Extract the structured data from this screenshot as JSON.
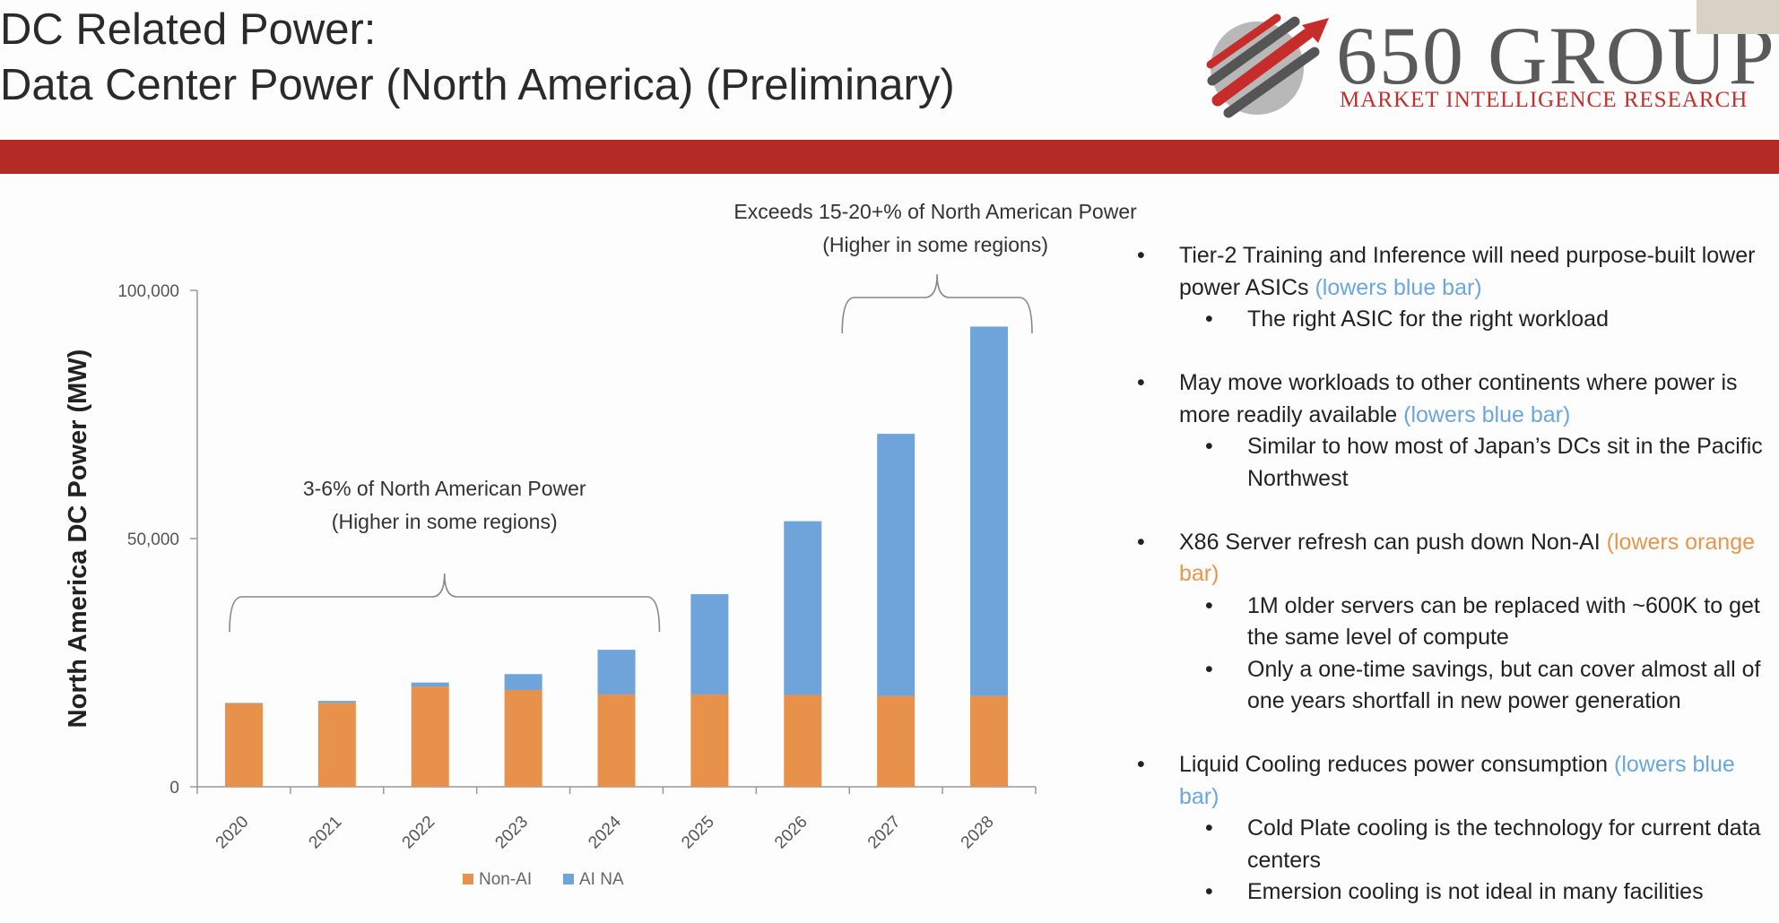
{
  "title": {
    "line1": "DC Related Power:",
    "line2": "Data Center Power (North America) (Preliminary)"
  },
  "logo": {
    "main": "650 GROUP",
    "sub": "MARKET INTELLIGENCE RESEARCH"
  },
  "colors": {
    "band": "#b42a24",
    "non_ai": "#e8914a",
    "ai_na": "#6fa4da",
    "blue_note": "#6aa6df",
    "orange_note": "#e8964e"
  },
  "chart_data": {
    "type": "bar",
    "stacked": true,
    "categories": [
      "2020",
      "2021",
      "2022",
      "2023",
      "2024",
      "2025",
      "2026",
      "2027",
      "2028"
    ],
    "series": [
      {
        "name": "Non-AI",
        "color": "#e8914a",
        "values": [
          16800,
          16900,
          20200,
          19500,
          18600,
          18600,
          18500,
          18300,
          18300
        ]
      },
      {
        "name": "AI NA",
        "color": "#6fa4da",
        "values": [
          100,
          400,
          800,
          3200,
          9000,
          20200,
          35000,
          52800,
          74400
        ]
      }
    ],
    "ylabel": "North America DC Power (MW)",
    "xlabel": "",
    "ylim": [
      0,
      100000
    ],
    "yticks": [
      0,
      50000,
      100000
    ],
    "ytick_labels": [
      "0",
      "50,000",
      "100,000"
    ],
    "legend": [
      "Non-AI",
      "AI NA"
    ],
    "legend_position": "bottom-center",
    "annotations": [
      {
        "line1": "3-6% of North American Power",
        "line2": "(Higher in some regions)",
        "span": [
          "2020",
          "2024"
        ]
      },
      {
        "line1": "Exceeds 15-20+% of North American Power",
        "line2": "(Higher in some regions)",
        "span": [
          "2027",
          "2028"
        ]
      }
    ]
  },
  "bullets": [
    {
      "text": "Tier-2 Training and Inference will need purpose-built lower power ASICs",
      "note": "(lowers blue bar)",
      "note_color": "blue",
      "subs": [
        "The right ASIC for the right workload"
      ]
    },
    {
      "text": "May move workloads to other continents where power is more readily available",
      "note": "(lowers blue bar)",
      "note_color": "blue",
      "subs": [
        "Similar to how most of Japan’s DCs sit in the Pacific Northwest"
      ]
    },
    {
      "text": "X86 Server refresh can push down Non-AI",
      "note": "(lowers orange bar)",
      "note_color": "orange",
      "subs": [
        "1M older servers can be replaced with ~600K to get the same level of compute",
        "Only a one-time savings, but can cover almost all of one years shortfall in new power generation"
      ]
    },
    {
      "text": "Liquid Cooling reduces power consumption",
      "note": "(lowers blue bar)",
      "note_color": "blue",
      "subs": [
        "Cold Plate cooling is the technology for current data centers",
        "Emersion cooling is not ideal in many facilities"
      ]
    }
  ]
}
